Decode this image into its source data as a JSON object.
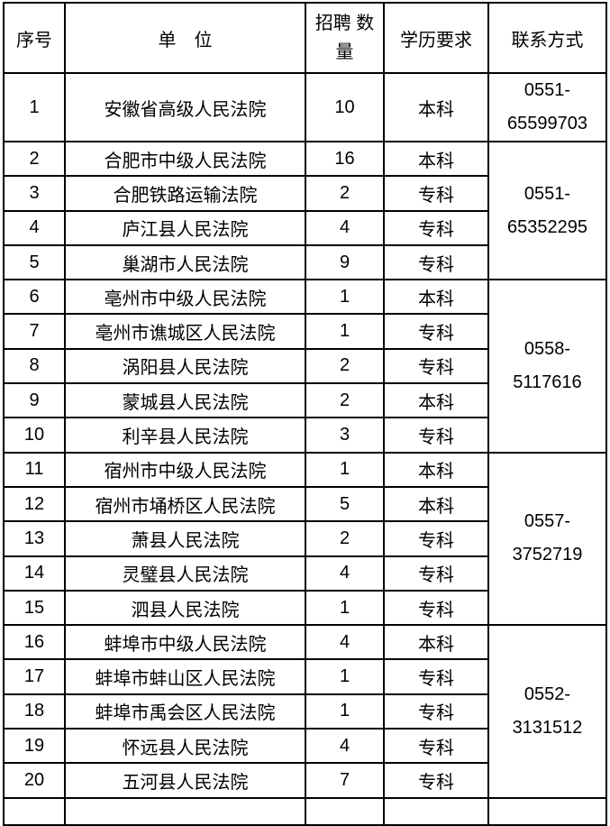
{
  "table": {
    "headers": {
      "no": "序号",
      "unit": "单　位",
      "count": "招聘 数\n量",
      "edu": "学历要求",
      "contact": "联系方式"
    },
    "rows": [
      {
        "no": "1",
        "unit": "安徽省高级人民法院",
        "count": "10",
        "edu": "本科"
      },
      {
        "no": "2",
        "unit": "合肥市中级人民法院",
        "count": "16",
        "edu": "本科"
      },
      {
        "no": "3",
        "unit": "合肥铁路运输法院",
        "count": "2",
        "edu": "专科"
      },
      {
        "no": "4",
        "unit": "庐江县人民法院",
        "count": "4",
        "edu": "专科"
      },
      {
        "no": "5",
        "unit": "巢湖市人民法院",
        "count": "9",
        "edu": "专科"
      },
      {
        "no": "6",
        "unit": "亳州市中级人民法院",
        "count": "1",
        "edu": "本科"
      },
      {
        "no": "7",
        "unit": "亳州市谯城区人民法院",
        "count": "1",
        "edu": "专科"
      },
      {
        "no": "8",
        "unit": "涡阳县人民法院",
        "count": "2",
        "edu": "专科"
      },
      {
        "no": "9",
        "unit": "蒙城县人民法院",
        "count": "2",
        "edu": "本科"
      },
      {
        "no": "10",
        "unit": "利辛县人民法院",
        "count": "3",
        "edu": "专科"
      },
      {
        "no": "11",
        "unit": "宿州市中级人民法院",
        "count": "1",
        "edu": "本科"
      },
      {
        "no": "12",
        "unit": "宿州市埇桥区人民法院",
        "count": "5",
        "edu": "本科"
      },
      {
        "no": "13",
        "unit": "萧县人民法院",
        "count": "2",
        "edu": "专科"
      },
      {
        "no": "14",
        "unit": "灵璧县人民法院",
        "count": "4",
        "edu": "专科"
      },
      {
        "no": "15",
        "unit": "泗县人民法院",
        "count": "1",
        "edu": "专科"
      },
      {
        "no": "16",
        "unit": "蚌埠市中级人民法院",
        "count": "4",
        "edu": "本科"
      },
      {
        "no": "17",
        "unit": "蚌埠市蚌山区人民法院",
        "count": "1",
        "edu": "专科"
      },
      {
        "no": "18",
        "unit": "蚌埠市禹会区人民法院",
        "count": "1",
        "edu": "专科"
      },
      {
        "no": "19",
        "unit": "怀远县人民法院",
        "count": "4",
        "edu": "专科"
      },
      {
        "no": "20",
        "unit": "五河县人民法院",
        "count": "7",
        "edu": "专科"
      }
    ],
    "contact_groups": [
      {
        "start_index": 0,
        "span": 1,
        "phone": "0551-\n65599703"
      },
      {
        "start_index": 1,
        "span": 4,
        "phone": "0551-\n65352295"
      },
      {
        "start_index": 5,
        "span": 5,
        "phone": "0558-\n5117616"
      },
      {
        "start_index": 10,
        "span": 5,
        "phone": "0557-\n3752719"
      },
      {
        "start_index": 15,
        "span": 5,
        "phone": "0552-\n3131512"
      }
    ],
    "partial_row_visible": true
  },
  "colors": {
    "border": "#000000",
    "text": "#000000",
    "background": "#ffffff"
  }
}
